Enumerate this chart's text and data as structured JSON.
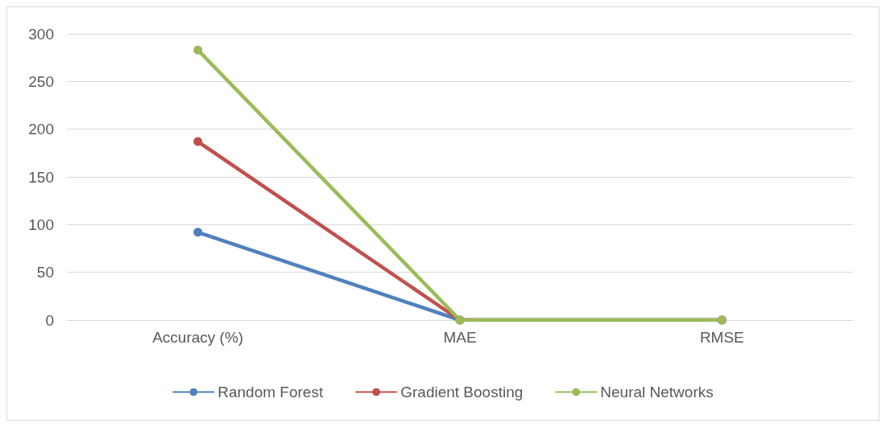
{
  "chart_data": {
    "type": "line",
    "categories": [
      "Accuracy (%)",
      "MAE",
      "RMSE"
    ],
    "series": [
      {
        "name": "Random Forest",
        "color": "#4f81bd",
        "values": [
          92,
          0,
          0
        ]
      },
      {
        "name": "Gradient Boosting",
        "color": "#c0504d",
        "values": [
          187,
          0,
          0
        ]
      },
      {
        "name": "Neural Networks",
        "color": "#9bbb59",
        "values": [
          283,
          0,
          0
        ]
      }
    ],
    "ylim": [
      0,
      300
    ],
    "yticks": [
      0,
      50,
      100,
      150,
      200,
      250,
      300
    ],
    "grid": "y",
    "legend": "bottom",
    "marker": "circle",
    "line_style": "solid"
  }
}
